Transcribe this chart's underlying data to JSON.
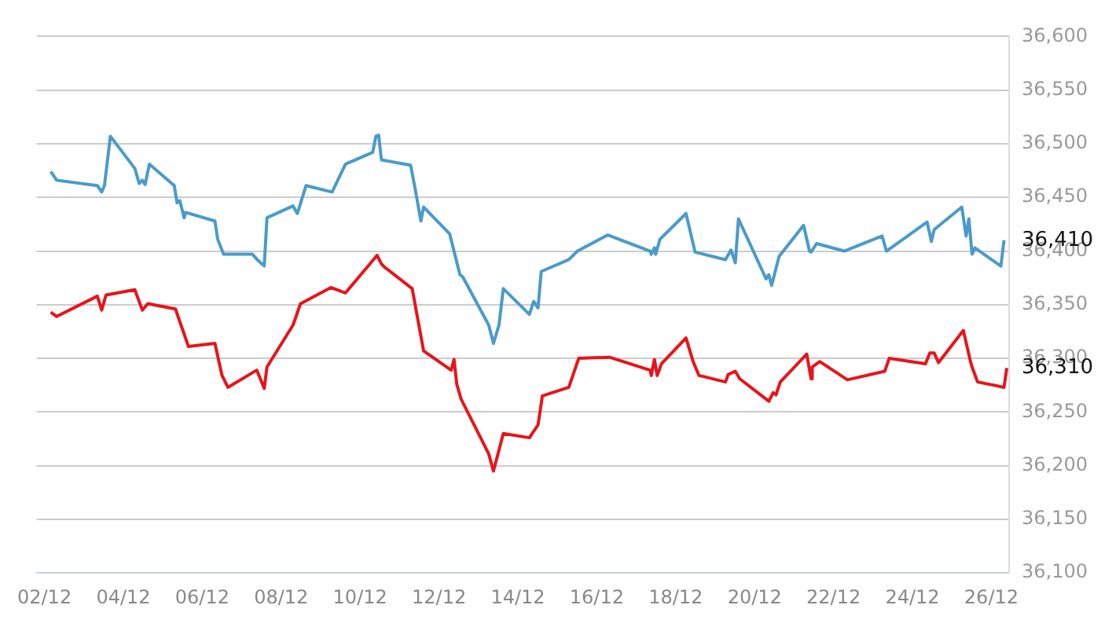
{
  "chart_data": {
    "type": "line",
    "series": [
      {
        "color": "#4a9bc9",
        "x": [
          "--12-02T03:50",
          "--12-02T07:26",
          "--12-03T08:10",
          "--12-03T10:48",
          "--12-03T12:29",
          "--12-03T16:05",
          "--12-04T06:58",
          "--12-04T09:36",
          "--12-04T11:31",
          "--12-04T13:12",
          "--12-04T15:50",
          "--12-05T06:58",
          "--12-05T08:38",
          "--12-05T10:19",
          "--12-05T12:58",
          "--12-05T13:55",
          "--12-06T07:41",
          "--12-06T09:22",
          "--12-06T12:58",
          "--12-07T06:29",
          "--12-07T10:05",
          "--12-07T13:41",
          "--12-07T15:22",
          "--12-08T07:12",
          "--12-08T09:50",
          "--12-08T15:07",
          "--12-09T06:58",
          "--12-09T15:07",
          "--12-10T07:41",
          "--12-10T09:36",
          "--12-10T11:17",
          "--12-10T12:58",
          "--12-11T06:43",
          "--12-11T09:22",
          "--12-11T12:58",
          "--12-11T14:38",
          "--12-12T06:29",
          "--12-12T12:43",
          "--12-12T14:24",
          "--12-13T06:14",
          "--12-13T09:07",
          "--12-13T12:29",
          "--12-13T15:07",
          "--12-14T06:58",
          "--12-14T09:36",
          "--12-14T12:14",
          "--12-14T14:10",
          "--12-15T06:58",
          "--12-15T12:14",
          "--12-16T06:43",
          "--12-17T08:24",
          "--12-17T09:07",
          "--12-17T11:02",
          "--12-17T11:46",
          "--12-17T14:24",
          "--12-18T06:14",
          "--12-18T11:46",
          "--12-19T06:14",
          "--12-19T09:36",
          "--12-19T12:14",
          "--12-19T14:10",
          "--12-20T06:58",
          "--12-20T08:38",
          "--12-20T10:19",
          "--12-20T14:53",
          "--12-21T05:46",
          "--12-21T09:22",
          "--12-21T10:19",
          "--12-21T13:41",
          "--12-22T06:29",
          "--12-23T05:31",
          "--12-23T08:10",
          "--12-24T08:53",
          "--12-24T11:31",
          "--12-24T13:12",
          "--12-25T06:00",
          "--12-25T08:38",
          "--12-25T10:19",
          "--12-25T12:14",
          "--12-25T13:55",
          "--12-26T05:46",
          "--12-26T07:41"
        ],
        "values": [
          36474,
          36466,
          36461,
          36455,
          36461,
          36507,
          36477,
          36463,
          36466,
          36462,
          36481,
          36461,
          36445,
          36447,
          36431,
          36436,
          36428,
          36411,
          36397,
          36397,
          36391,
          36386,
          36431,
          36442,
          36435,
          36461,
          36455,
          36481,
          36492,
          36507,
          36508,
          36485,
          36480,
          36459,
          36428,
          36441,
          36416,
          36378,
          36376,
          36331,
          36314,
          36331,
          36365,
          36341,
          36353,
          36347,
          36381,
          36392,
          36400,
          36415,
          36400,
          36397,
          36403,
          36397,
          36411,
          36435,
          36399,
          36392,
          36401,
          36389,
          36430,
          36374,
          36378,
          36368,
          36395,
          36424,
          36400,
          36399,
          36407,
          36400,
          36414,
          36400,
          36427,
          36409,
          36420,
          36441,
          36414,
          36430,
          36397,
          36403,
          36386,
          36410
        ]
      },
      {
        "color": "#e8141b",
        "x": [
          "--12-02T03:50",
          "--12-02T07:26",
          "--12-03T08:10",
          "--12-03T10:48",
          "--12-03T13:26",
          "--12-04T06:58",
          "--12-04T11:31",
          "--12-04T14:53",
          "--12-05T07:41",
          "--12-05T15:36",
          "--12-06T07:41",
          "--12-06T12:00",
          "--12-06T15:36",
          "--12-07T09:07",
          "--12-07T13:41",
          "--12-07T15:22",
          "--12-08T07:12",
          "--12-08T11:46",
          "--12-09T06:14",
          "--12-09T15:07",
          "--12-10T10:19",
          "--12-10T12:58",
          "--12-10T14:53",
          "--12-11T07:41",
          "--12-11T14:38",
          "--12-12T07:26",
          "--12-12T09:07",
          "--12-12T10:48",
          "--12-12T13:26",
          "--12-13T06:14",
          "--12-13T09:07",
          "--12-13T15:07",
          "--12-14T06:58",
          "--12-14T12:14",
          "--12-14T14:53",
          "--12-15T06:58",
          "--12-15T12:58",
          "--12-16T07:41",
          "--12-17T08:24",
          "--12-17T09:07",
          "--12-17T11:02",
          "--12-17T12:43",
          "--12-17T15:22",
          "--12-18T06:14",
          "--12-18T10:34",
          "--12-18T14:10",
          "--12-19T06:14",
          "--12-19T07:55",
          "--12-19T12:14",
          "--12-19T14:53",
          "--12-20T08:38",
          "--12-20T11:17",
          "--12-20T12:58",
          "--12-20T15:36",
          "--12-21T07:41",
          "--12-21T10:19",
          "--12-21T11:02",
          "--12-21T15:36",
          "--12-22T08:24",
          "--12-23T07:12",
          "--12-23T09:50",
          "--12-24T07:55",
          "--12-24T10:34",
          "--12-24T13:12",
          "--12-24T15:50",
          "--12-25T06:58",
          "--12-25T11:17",
          "--12-25T12:14",
          "--12-25T15:36",
          "--12-26T07:41",
          "--12-26T09:22"
        ],
        "values": [
          36343,
          36339,
          36358,
          36345,
          36359,
          36364,
          36345,
          36351,
          36346,
          36311,
          36314,
          36284,
          36273,
          36289,
          36272,
          36292,
          36331,
          36351,
          36366,
          36361,
          36396,
          36388,
          36385,
          36365,
          36307,
          36289,
          36299,
          36276,
          36262,
          36211,
          36195,
          36230,
          36226,
          36238,
          36265,
          36273,
          36300,
          36301,
          36289,
          36284,
          36299,
          36284,
          36295,
          36319,
          36297,
          36284,
          36278,
          36285,
          36288,
          36281,
          36260,
          36268,
          36266,
          36278,
          36304,
          36281,
          36292,
          36297,
          36280,
          36288,
          36300,
          36295,
          36305,
          36305,
          36296,
          36326,
          36297,
          36292,
          36278,
          36273,
          36291
        ]
      }
    ],
    "xlim": [
      "--12-01T19:12",
      "--12-26T10:48"
    ],
    "xticks": [
      {
        "value": "--12-02",
        "label": "02/12"
      },
      {
        "value": "--12-04",
        "label": "04/12"
      },
      {
        "value": "--12-06",
        "label": "06/12"
      },
      {
        "value": "--12-08",
        "label": "08/12"
      },
      {
        "value": "--12-10",
        "label": "10/12"
      },
      {
        "value": "--12-12",
        "label": "12/12"
      },
      {
        "value": "--12-14",
        "label": "14/12"
      },
      {
        "value": "--12-16",
        "label": "16/12"
      },
      {
        "value": "--12-18",
        "label": "18/12"
      },
      {
        "value": "--12-20",
        "label": "20/12"
      },
      {
        "value": "--12-22",
        "label": "22/12"
      },
      {
        "value": "--12-24",
        "label": "24/12"
      },
      {
        "value": "--12-26",
        "label": "26/12"
      }
    ],
    "ylim": [
      36100,
      36600
    ],
    "yticks": [
      {
        "value": 36100,
        "label": "36,100"
      },
      {
        "value": 36150,
        "label": "36,150"
      },
      {
        "value": 36200,
        "label": "36,200"
      },
      {
        "value": 36250,
        "label": "36,250"
      },
      {
        "value": 36300,
        "label": "36,300"
      },
      {
        "value": 36350,
        "label": "36,350"
      },
      {
        "value": 36400,
        "label": "36,400"
      },
      {
        "value": 36450,
        "label": "36,450"
      },
      {
        "value": 36500,
        "label": "36,500"
      },
      {
        "value": 36550,
        "label": "36,550"
      },
      {
        "value": 36600,
        "label": "36,600"
      }
    ],
    "annotations": [
      "36,410",
      "36,310"
    ],
    "grid": "y",
    "legend": false,
    "marker": "none",
    "line_style": "solid"
  }
}
